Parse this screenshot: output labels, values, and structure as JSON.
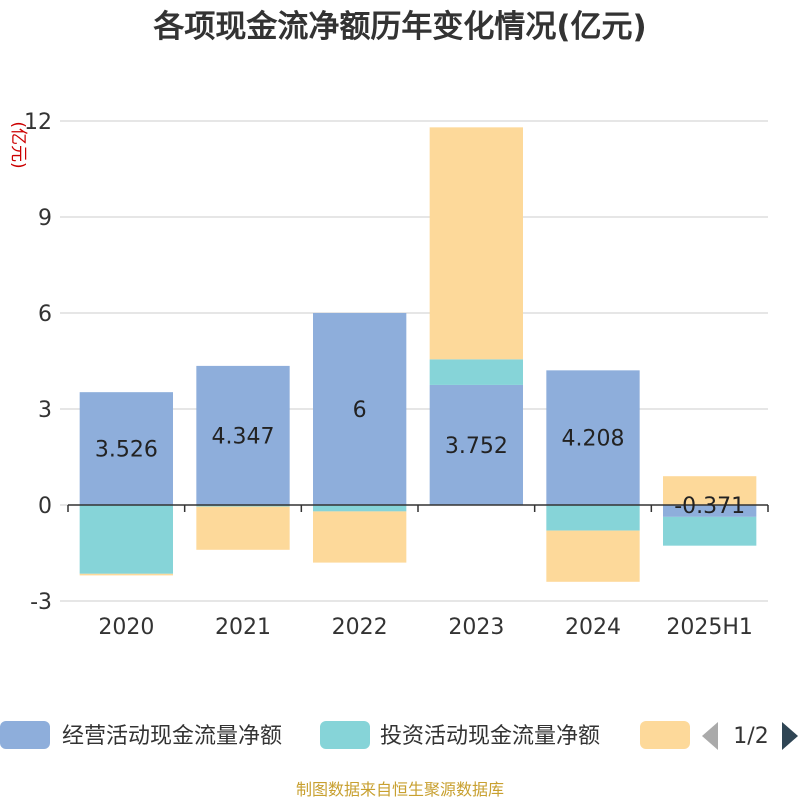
{
  "chart_data": {
    "type": "bar",
    "stacked": true,
    "title": "各项现金流净额历年变化情况(亿元)",
    "unit_label": "(亿元)",
    "categories": [
      "2020",
      "2021",
      "2022",
      "2023",
      "2024",
      "2025H1"
    ],
    "ylim": [
      -3,
      12
    ],
    "yticks": [
      -3,
      0,
      3,
      6,
      9,
      12
    ],
    "grid": true,
    "series": [
      {
        "name": "经营活动现金流量净额",
        "color": "#8eaedb",
        "values": [
          3.526,
          4.347,
          6,
          3.752,
          4.208,
          -0.371
        ],
        "labels": [
          "3.526",
          "4.347",
          "6",
          "3.752",
          "4.208",
          "-0.371"
        ]
      },
      {
        "name": "投资活动现金流量净额",
        "color": "#86d4d8",
        "values": [
          -2.15,
          -0.05,
          -0.2,
          0.8,
          -0.8,
          -0.9
        ]
      },
      {
        "name": "",
        "color": "#fdd99a",
        "values": [
          -0.05,
          -1.35,
          -1.6,
          7.25,
          -1.6,
          0.9
        ]
      }
    ],
    "legend": {
      "position": "bottom",
      "page": "1/2"
    }
  },
  "source": "制图数据来自恒生聚源数据库"
}
